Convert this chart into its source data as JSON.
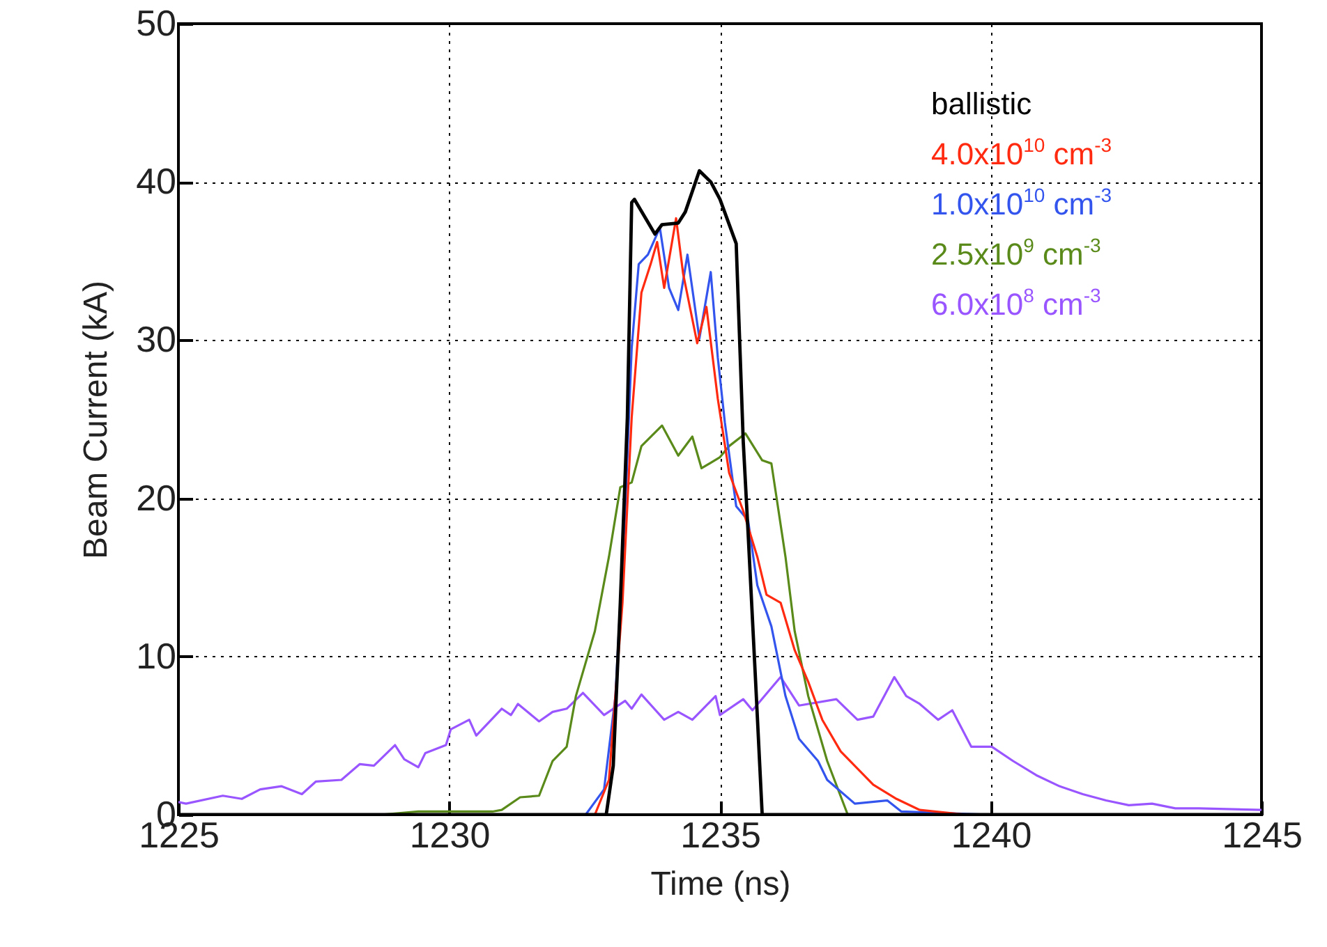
{
  "chart_data": {
    "type": "line",
    "xlabel": "Time (ns)",
    "ylabel": "Beam Current (kA)",
    "xlim": [
      1225,
      1245
    ],
    "ylim": [
      0,
      50
    ],
    "xticks": [
      1225,
      1230,
      1235,
      1240,
      1245
    ],
    "yticks": [
      0,
      10,
      20,
      30,
      40,
      50
    ],
    "grid": true,
    "legend": "top right",
    "series": [
      {
        "name": "ballistic",
        "color": "#000000",
        "x": [
          1225,
          1232.9,
          1233.03,
          1233.16,
          1233.29,
          1233.37,
          1233.42,
          1233.8,
          1233.93,
          1234.23,
          1234.36,
          1234.62,
          1234.83,
          1235.0,
          1235.3,
          1235.43,
          1235.52,
          1235.65,
          1235.78,
          1245
        ],
        "values": [
          0,
          0,
          3.1,
          13.4,
          25.1,
          38.7,
          38.9,
          36.7,
          37.3,
          37.4,
          38.1,
          40.7,
          40.0,
          38.9,
          36.1,
          23.6,
          17.8,
          9.0,
          0,
          0
        ]
      },
      {
        "name": "4.0x10$^{10}$ cm$^{-3}$",
        "color": "#ff2a10",
        "x": [
          1225,
          1232.69,
          1232.95,
          1233.2,
          1233.37,
          1233.55,
          1233.72,
          1233.84,
          1233.97,
          1234.19,
          1234.32,
          1234.58,
          1234.75,
          1234.96,
          1235.17,
          1235.43,
          1235.69,
          1235.86,
          1236.12,
          1236.38,
          1236.63,
          1236.89,
          1237.23,
          1237.83,
          1238.26,
          1238.69,
          1239.55,
          1245
        ],
        "values": [
          0,
          0,
          2.2,
          13.4,
          25.1,
          33.0,
          34.8,
          36.2,
          33.3,
          37.7,
          34.2,
          29.8,
          32.1,
          26.3,
          21.6,
          19.2,
          16.3,
          13.9,
          13.4,
          10.4,
          8.4,
          6.0,
          4.0,
          1.9,
          1.0,
          0.3,
          0,
          0
        ]
      },
      {
        "name": "1.0x10$^{10}$ cm$^{-3}$",
        "color": "#3355ee",
        "x": [
          1225,
          1232.52,
          1232.86,
          1233.07,
          1233.25,
          1233.37,
          1233.5,
          1233.67,
          1233.89,
          1234.06,
          1234.23,
          1234.4,
          1234.62,
          1234.83,
          1234.96,
          1235.09,
          1235.3,
          1235.52,
          1235.69,
          1235.95,
          1236.21,
          1236.46,
          1236.81,
          1236.98,
          1237.49,
          1238.09,
          1238.35,
          1239.98,
          1245
        ],
        "values": [
          0,
          0,
          1.6,
          7.5,
          19.2,
          29.5,
          34.8,
          35.4,
          37.1,
          33.3,
          31.9,
          35.4,
          30.1,
          34.3,
          28.9,
          24.8,
          19.5,
          18.6,
          14.5,
          11.9,
          7.5,
          4.8,
          3.4,
          2.2,
          0.7,
          0.9,
          0.2,
          0,
          0
        ]
      },
      {
        "name": "2.5x10$^{9}$ cm$^{-3}$",
        "color": "#5a8a1a",
        "x": [
          1225,
          1228.74,
          1229.43,
          1230.8,
          1230.97,
          1231.31,
          1231.66,
          1231.91,
          1232.17,
          1232.34,
          1232.69,
          1232.95,
          1233.16,
          1233.37,
          1233.55,
          1233.93,
          1234.23,
          1234.49,
          1234.66,
          1235.0,
          1235.17,
          1235.47,
          1235.78,
          1235.95,
          1236.21,
          1236.38,
          1236.63,
          1236.98,
          1237.36,
          1245
        ],
        "values": [
          0,
          0,
          0.2,
          0.2,
          0.3,
          1.1,
          1.2,
          3.4,
          4.3,
          7.5,
          11.6,
          16.3,
          20.7,
          21.0,
          23.3,
          24.6,
          22.7,
          23.9,
          21.9,
          22.6,
          23.3,
          24.1,
          22.4,
          22.2,
          16.3,
          11.6,
          7.5,
          3.4,
          0,
          0
        ]
      },
      {
        "name": "6.0x10$^{8}$ cm$^{-3}$",
        "color": "#9955ff",
        "x": [
          1225,
          1225.14,
          1225.82,
          1226.17,
          1226.51,
          1226.9,
          1227.28,
          1227.54,
          1228.01,
          1228.35,
          1228.61,
          1229.0,
          1229.17,
          1229.43,
          1229.56,
          1229.94,
          1230.03,
          1230.37,
          1230.5,
          1230.97,
          1231.14,
          1231.27,
          1231.66,
          1231.91,
          1232.17,
          1232.47,
          1232.86,
          1233.25,
          1233.37,
          1233.55,
          1233.97,
          1234.23,
          1234.49,
          1234.92,
          1235.0,
          1235.43,
          1235.6,
          1236.12,
          1236.46,
          1237.15,
          1237.54,
          1237.83,
          1238.22,
          1238.44,
          1238.69,
          1239.03,
          1239.29,
          1239.64,
          1240.02,
          1240.41,
          1240.84,
          1241.27,
          1241.7,
          1242.13,
          1242.55,
          1242.98,
          1243.41,
          1243.84,
          1245
        ],
        "values": [
          0.8,
          0.7,
          1.2,
          1.0,
          1.6,
          1.8,
          1.3,
          2.1,
          2.2,
          3.2,
          3.1,
          4.4,
          3.5,
          3.0,
          3.9,
          4.4,
          5.4,
          6.0,
          5.0,
          6.7,
          6.3,
          7.0,
          5.9,
          6.5,
          6.7,
          7.7,
          6.3,
          7.2,
          6.7,
          7.6,
          6.0,
          6.5,
          6.0,
          7.5,
          6.3,
          7.3,
          6.6,
          8.7,
          6.9,
          7.3,
          6.0,
          6.2,
          8.7,
          7.5,
          7.0,
          6.0,
          6.6,
          4.3,
          4.3,
          3.4,
          2.5,
          1.8,
          1.3,
          0.9,
          0.6,
          0.7,
          0.4,
          0.4,
          0.3
        ]
      }
    ]
  }
}
